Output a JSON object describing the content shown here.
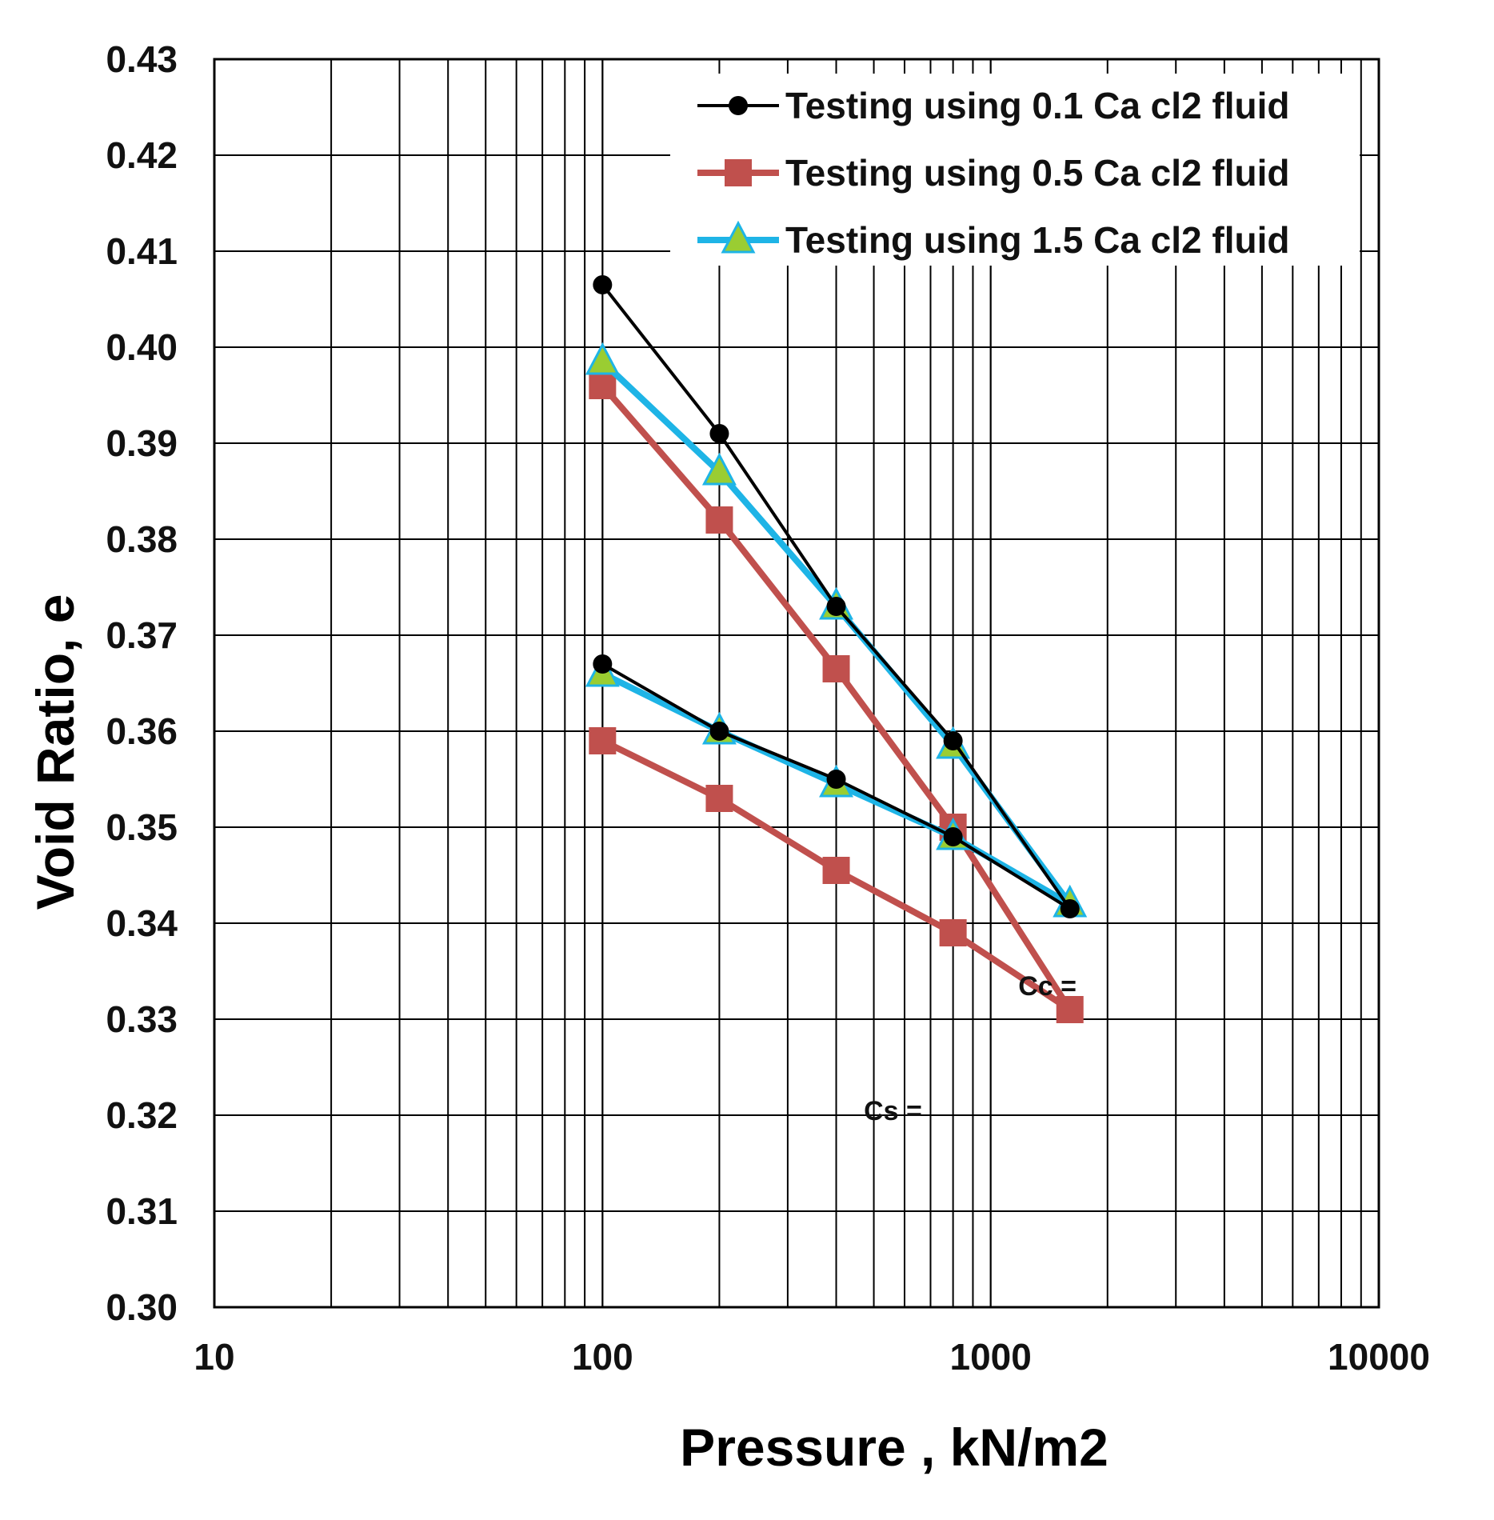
{
  "chart_data": {
    "type": "line",
    "title": "",
    "xlabel": "Pressure , kN/m2",
    "ylabel": "Void Ratio, e",
    "xscale": "log",
    "xlim": [
      10,
      10000
    ],
    "ylim": [
      0.3,
      0.43
    ],
    "x_ticks": [
      "10",
      "100",
      "1000",
      "10000"
    ],
    "y_ticks": [
      "0.30",
      "0.31",
      "0.32",
      "0.33",
      "0.34",
      "0.35",
      "0.36",
      "0.37",
      "0.38",
      "0.39",
      "0.40",
      "0.41",
      "0.42",
      "0.43"
    ],
    "grid": true,
    "legend_position": "top-right",
    "series": [
      {
        "name": "Testing using 0.1 Ca cl2 fluid",
        "color": "#000000",
        "marker": "circle",
        "x": [
          100,
          200,
          400,
          800,
          1600,
          800,
          400,
          200,
          100
        ],
        "y": [
          0.4065,
          0.391,
          0.373,
          0.359,
          0.3415,
          0.349,
          0.355,
          0.36,
          0.367
        ]
      },
      {
        "name": "Testing using 0.5 Ca cl2 fluid",
        "color": "#c0504d",
        "marker": "square",
        "x": [
          100,
          200,
          400,
          800,
          1600,
          800,
          400,
          200,
          100
        ],
        "y": [
          0.396,
          0.382,
          0.3665,
          0.35,
          0.331,
          0.339,
          0.3455,
          0.353,
          0.359
        ]
      },
      {
        "name": "Testing using 1.5 Ca cl2 fluid",
        "color": "#1eb4e6",
        "marker": "triangle",
        "x": [
          100,
          200,
          400,
          800,
          1600,
          800,
          400,
          200,
          100
        ],
        "y": [
          0.3985,
          0.387,
          0.373,
          0.3585,
          0.342,
          0.349,
          0.3545,
          0.36,
          0.366
        ]
      }
    ],
    "annotations": [
      {
        "text": "Cc =",
        "x": 1400,
        "y": 0.3325
      },
      {
        "text": "Cs =",
        "x": 560,
        "y": 0.3195
      }
    ]
  }
}
